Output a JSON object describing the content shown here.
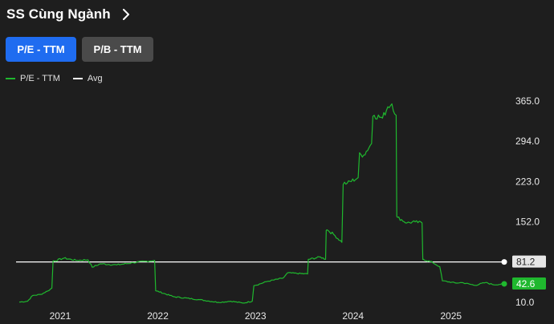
{
  "header": {
    "title": "SS Cùng Ngành",
    "chevron_icon": "chevron-right-icon"
  },
  "tabs": [
    {
      "label": "P/E - TTM",
      "active": true
    },
    {
      "label": "P/B - TTM",
      "active": false
    }
  ],
  "colors": {
    "accent": "#1f6cf0",
    "series": "#1fb82e",
    "avg": "#ffffff",
    "background": "#1e1e1e"
  },
  "chart_data": {
    "type": "line",
    "legend_placement": "top-left",
    "grid": false,
    "series": [
      {
        "name": "P/E - TTM",
        "color": "#1fb82e",
        "points": [
          [
            "2020-08-01",
            10.5
          ],
          [
            "2020-09-01",
            12
          ],
          [
            "2020-09-20",
            22
          ],
          [
            "2020-10-20",
            24
          ],
          [
            "2020-11-15",
            30
          ],
          [
            "2020-12-01",
            35
          ],
          [
            "2020-12-10",
            83
          ],
          [
            "2021-01-15",
            88
          ],
          [
            "2021-03-01",
            84
          ],
          [
            "2021-04-15",
            85
          ],
          [
            "2021-05-01",
            72
          ],
          [
            "2021-06-01",
            78
          ],
          [
            "2021-08-01",
            76
          ],
          [
            "2021-10-01",
            80
          ],
          [
            "2021-12-20",
            84
          ],
          [
            "2021-12-28",
            30
          ],
          [
            "2022-03-01",
            20
          ],
          [
            "2022-06-01",
            15
          ],
          [
            "2022-08-15",
            10
          ],
          [
            "2022-10-01",
            12
          ],
          [
            "2022-11-15",
            8.7
          ],
          [
            "2022-12-20",
            12
          ],
          [
            "2023-01-01",
            40
          ],
          [
            "2023-02-15",
            47
          ],
          [
            "2023-04-15",
            53
          ],
          [
            "2023-05-01",
            62
          ],
          [
            "2023-07-15",
            60
          ],
          [
            "2023-07-20",
            86
          ],
          [
            "2023-09-01",
            90
          ],
          [
            "2023-09-20",
            86
          ],
          [
            "2023-09-25",
            138
          ],
          [
            "2023-10-20",
            130
          ],
          [
            "2023-11-20",
            116
          ],
          [
            "2023-12-10",
            220
          ],
          [
            "2024-01-20",
            230
          ],
          [
            "2024-02-10",
            270
          ],
          [
            "2024-03-10",
            290
          ],
          [
            "2024-03-20",
            340
          ],
          [
            "2024-04-20",
            335
          ],
          [
            "2024-05-10",
            355
          ],
          [
            "2024-05-25",
            360
          ],
          [
            "2024-06-10",
            340
          ],
          [
            "2024-06-15",
            160
          ],
          [
            "2024-07-20",
            150
          ],
          [
            "2024-08-20",
            152
          ],
          [
            "2024-09-15",
            150
          ],
          [
            "2024-09-20",
            86
          ],
          [
            "2024-10-25",
            80
          ],
          [
            "2024-11-20",
            73
          ],
          [
            "2024-11-30",
            48
          ],
          [
            "2025-01-20",
            44
          ],
          [
            "2025-02-10",
            45
          ],
          [
            "2025-04-01",
            40
          ],
          [
            "2025-05-10",
            45
          ],
          [
            "2025-06-10",
            41
          ],
          [
            "2025-07-20",
            42.6
          ]
        ],
        "last_value_label": "42.6"
      },
      {
        "name": "Avg",
        "color": "#ffffff",
        "constant": 81.2,
        "value_label": "81.2"
      }
    ],
    "x_range": [
      "2020-07-20",
      "2025-07-25"
    ],
    "x_ticks": [
      "2021",
      "2022",
      "2023",
      "2024",
      "2025"
    ],
    "y_range": [
      10.0,
      365.0
    ],
    "y_ticks": [
      "365.0",
      "294.0",
      "223.0",
      "152.0",
      "81.0",
      "10.0"
    ]
  }
}
